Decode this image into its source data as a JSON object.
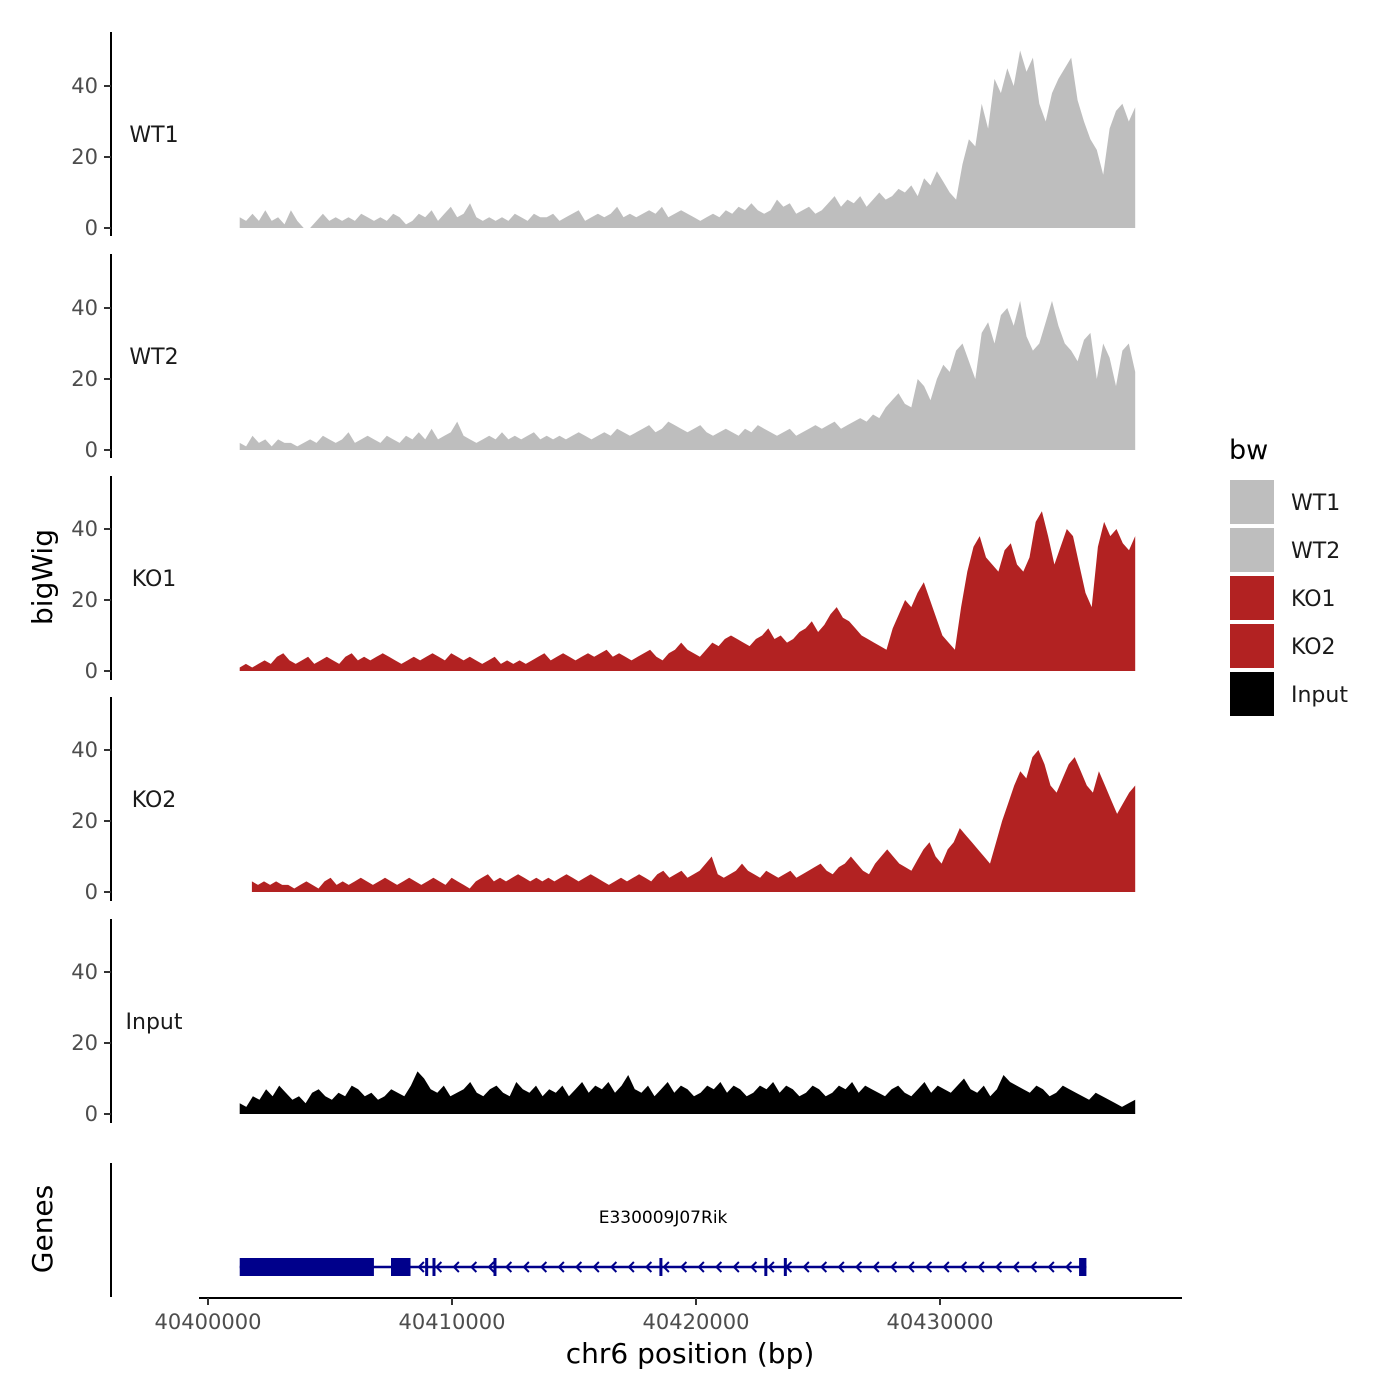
{
  "chart_data": {
    "type": "area",
    "title": "",
    "ylabel": "bigWig",
    "xlabel": "chr6 position (bp)",
    "xlim": [
      40399000,
      40439500
    ],
    "ylim": [
      0,
      55
    ],
    "xticks": [
      40400000,
      40410000,
      40420000,
      40430000
    ],
    "xtick_labels": [
      "40400000",
      "40410000",
      "40420000",
      "40430000"
    ],
    "yticks": [
      0,
      20,
      40
    ],
    "ytick_labels": [
      "0",
      "20",
      "40"
    ],
    "legend": {
      "title": "bw",
      "position": "right",
      "entries": [
        {
          "label": "WT1",
          "color": "#bebebe"
        },
        {
          "label": "WT2",
          "color": "#bebebe"
        },
        {
          "label": "KO1",
          "color": "#b22222"
        },
        {
          "label": "KO2",
          "color": "#b22222"
        },
        {
          "label": "Input",
          "color": "#000000"
        }
      ]
    },
    "series": [
      {
        "name": "WT1",
        "color": "#bebebe",
        "x_start": 40401300,
        "x_end": 40438000,
        "values": [
          3,
          2,
          4,
          2,
          5,
          2,
          3,
          1,
          5,
          2,
          0,
          0,
          2,
          4,
          2,
          3,
          2,
          3,
          2,
          4,
          3,
          2,
          3,
          2,
          4,
          3,
          1,
          2,
          4,
          3,
          5,
          2,
          4,
          6,
          3,
          4,
          7,
          3,
          2,
          3,
          2,
          3,
          2,
          4,
          3,
          2,
          4,
          3,
          3,
          4,
          2,
          3,
          4,
          5,
          2,
          3,
          4,
          3,
          4,
          6,
          3,
          4,
          3,
          4,
          5,
          4,
          6,
          3,
          4,
          5,
          4,
          3,
          2,
          3,
          4,
          3,
          5,
          4,
          6,
          5,
          7,
          5,
          4,
          5,
          8,
          6,
          7,
          4,
          5,
          6,
          4,
          5,
          7,
          9,
          6,
          8,
          7,
          9,
          6,
          8,
          10,
          8,
          9,
          11,
          10,
          12,
          9,
          14,
          12,
          16,
          13,
          10,
          8,
          18,
          25,
          23,
          35,
          28,
          42,
          38,
          45,
          40,
          50,
          44,
          48,
          35,
          30,
          38,
          42,
          45,
          48,
          36,
          30,
          25,
          22,
          15,
          28,
          33,
          35,
          30,
          34
        ]
      },
      {
        "name": "WT2",
        "color": "#bebebe",
        "x_start": 40401300,
        "x_end": 40438000,
        "values": [
          2,
          1,
          4,
          2,
          3,
          1,
          3,
          2,
          2,
          1,
          2,
          3,
          2,
          4,
          3,
          2,
          3,
          5,
          2,
          3,
          4,
          3,
          2,
          4,
          3,
          2,
          4,
          3,
          5,
          3,
          6,
          3,
          4,
          5,
          8,
          4,
          3,
          2,
          3,
          4,
          3,
          5,
          3,
          4,
          3,
          4,
          5,
          3,
          4,
          3,
          4,
          3,
          4,
          5,
          4,
          3,
          4,
          5,
          4,
          6,
          5,
          4,
          5,
          6,
          7,
          5,
          6,
          8,
          7,
          6,
          5,
          6,
          7,
          5,
          4,
          5,
          6,
          5,
          4,
          6,
          5,
          7,
          6,
          5,
          4,
          5,
          6,
          4,
          5,
          6,
          7,
          6,
          7,
          8,
          6,
          7,
          8,
          9,
          8,
          10,
          9,
          12,
          14,
          16,
          13,
          12,
          20,
          18,
          14,
          20,
          24,
          22,
          28,
          30,
          25,
          20,
          33,
          36,
          30,
          38,
          40,
          35,
          42,
          32,
          28,
          30,
          36,
          42,
          35,
          30,
          28,
          25,
          31,
          33,
          20,
          30,
          26,
          18,
          28,
          30,
          22
        ]
      },
      {
        "name": "KO1",
        "color": "#b22222",
        "x_start": 40401300,
        "x_end": 40438000,
        "values": [
          1,
          2,
          1,
          2,
          3,
          2,
          4,
          5,
          3,
          2,
          3,
          4,
          2,
          3,
          4,
          3,
          2,
          4,
          5,
          3,
          4,
          3,
          4,
          5,
          4,
          3,
          2,
          3,
          4,
          3,
          4,
          5,
          4,
          3,
          5,
          4,
          3,
          4,
          3,
          2,
          3,
          4,
          2,
          3,
          2,
          3,
          2,
          3,
          4,
          5,
          3,
          4,
          5,
          4,
          3,
          4,
          5,
          4,
          5,
          6,
          4,
          5,
          4,
          3,
          4,
          5,
          6,
          4,
          3,
          5,
          6,
          8,
          6,
          5,
          4,
          6,
          8,
          7,
          9,
          10,
          9,
          8,
          7,
          9,
          10,
          12,
          9,
          10,
          8,
          9,
          11,
          12,
          14,
          11,
          13,
          16,
          18,
          15,
          14,
          12,
          10,
          9,
          8,
          7,
          6,
          12,
          16,
          20,
          18,
          22,
          25,
          20,
          15,
          10,
          8,
          6,
          18,
          28,
          35,
          38,
          32,
          30,
          28,
          34,
          36,
          30,
          28,
          32,
          42,
          45,
          38,
          30,
          35,
          40,
          38,
          30,
          22,
          18,
          35,
          42,
          38,
          40,
          36,
          34,
          38
        ]
      },
      {
        "name": "KO2",
        "color": "#b22222",
        "x_start": 40401800,
        "x_end": 40438000,
        "values": [
          3,
          2,
          3,
          2,
          3,
          2,
          2,
          1,
          2,
          3,
          2,
          1,
          3,
          4,
          2,
          3,
          2,
          3,
          4,
          3,
          2,
          3,
          4,
          3,
          2,
          3,
          4,
          3,
          2,
          3,
          4,
          3,
          2,
          4,
          3,
          2,
          1,
          3,
          4,
          5,
          3,
          4,
          3,
          4,
          5,
          4,
          3,
          4,
          3,
          4,
          3,
          4,
          5,
          4,
          3,
          4,
          5,
          4,
          3,
          2,
          3,
          4,
          3,
          4,
          5,
          4,
          3,
          5,
          6,
          4,
          5,
          6,
          4,
          5,
          6,
          8,
          10,
          5,
          4,
          5,
          6,
          8,
          6,
          5,
          4,
          6,
          5,
          4,
          5,
          6,
          4,
          5,
          6,
          7,
          8,
          6,
          5,
          7,
          8,
          10,
          8,
          6,
          5,
          8,
          10,
          12,
          10,
          8,
          7,
          6,
          9,
          12,
          14,
          10,
          8,
          12,
          14,
          18,
          16,
          14,
          12,
          10,
          8,
          14,
          20,
          25,
          30,
          34,
          32,
          38,
          40,
          36,
          30,
          28,
          32,
          36,
          38,
          34,
          30,
          28,
          34,
          30,
          26,
          22,
          25,
          28,
          30
        ]
      },
      {
        "name": "Input",
        "color": "#000000",
        "x_start": 40401300,
        "x_end": 40438000,
        "values": [
          3,
          2,
          5,
          4,
          7,
          5,
          8,
          6,
          4,
          5,
          3,
          6,
          7,
          5,
          4,
          6,
          5,
          8,
          7,
          5,
          6,
          4,
          5,
          7,
          6,
          5,
          8,
          12,
          10,
          7,
          6,
          8,
          5,
          6,
          7,
          9,
          6,
          5,
          7,
          8,
          6,
          5,
          9,
          7,
          6,
          8,
          5,
          7,
          6,
          8,
          5,
          7,
          9,
          6,
          8,
          7,
          9,
          6,
          8,
          11,
          7,
          6,
          8,
          5,
          7,
          9,
          6,
          8,
          7,
          5,
          6,
          8,
          7,
          9,
          6,
          8,
          7,
          5,
          6,
          8,
          7,
          9,
          6,
          8,
          7,
          5,
          6,
          8,
          7,
          5,
          6,
          8,
          7,
          9,
          6,
          8,
          7,
          6,
          5,
          7,
          8,
          6,
          5,
          7,
          9,
          6,
          8,
          7,
          6,
          8,
          10,
          7,
          6,
          8,
          5,
          7,
          11,
          9,
          8,
          7,
          6,
          8,
          7,
          5,
          6,
          8,
          7,
          6,
          5,
          4,
          6,
          5,
          4,
          3,
          2,
          3,
          4
        ]
      }
    ],
    "gene_track": {
      "ylabel": "Genes",
      "gene_name": "E330009J07Rik",
      "strand": "-",
      "color": "#00008b",
      "start": 40401300,
      "end": 40436000,
      "exons": [
        [
          40401300,
          40406800
        ],
        [
          40407500,
          40408300
        ],
        [
          40408900,
          40409000
        ],
        [
          40409200,
          40409300
        ],
        [
          40411700,
          40411800
        ],
        [
          40418500,
          40418600
        ],
        [
          40422800,
          40422900
        ],
        [
          40423600,
          40423700
        ],
        [
          40435700,
          40436000
        ]
      ]
    }
  }
}
